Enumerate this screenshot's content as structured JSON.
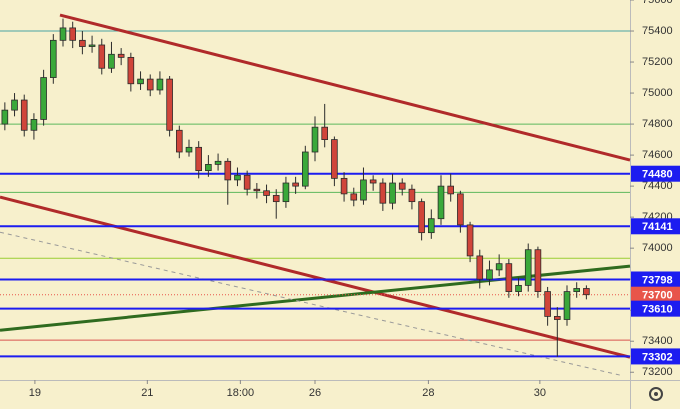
{
  "chart_data": {
    "type": "candlestick",
    "xlim": [
      -0.5,
      64.5
    ],
    "xticks": [
      {
        "value": 3.1,
        "label": "19"
      },
      {
        "value": 14.7,
        "label": "21"
      },
      {
        "value": 24.3,
        "label": "18:00"
      },
      {
        "value": 32,
        "label": "26"
      },
      {
        "value": 43.7,
        "label": "28"
      },
      {
        "value": 55.2,
        "label": "30"
      }
    ],
    "ylim": [
      73150,
      75600
    ],
    "yticks": [
      75600,
      75400,
      75200,
      75000,
      74800,
      74600,
      74400,
      74200,
      74000,
      73800,
      73600,
      73400,
      73200
    ],
    "grid": false,
    "up_color": "#3aa83a",
    "down_color": "#d0453a",
    "open": [
      74800,
      74890,
      74955,
      74760,
      74830,
      75100,
      75340,
      75420,
      75340,
      75300,
      75310,
      75160,
      75250,
      75230,
      75060,
      75090,
      75020,
      75090,
      74760,
      74620,
      74650,
      74500,
      74540,
      74560,
      74440,
      74470,
      74380,
      74370,
      74340,
      74300,
      74420,
      74400,
      74620,
      74780,
      74700,
      74450,
      74350,
      74310,
      74440,
      74420,
      74290,
      74420,
      74380,
      74300,
      74100,
      74190,
      74400,
      74350,
      74150,
      73950,
      73800,
      73860,
      73900,
      73720,
      73760,
      73990,
      73720,
      73560,
      73540,
      73720,
      73740
    ],
    "high": [
      74940,
      75000,
      74990,
      74870,
      75150,
      75380,
      75480,
      75460,
      75400,
      75370,
      75350,
      75330,
      75290,
      75260,
      75140,
      75120,
      75140,
      75110,
      74790,
      74700,
      74690,
      74600,
      74610,
      74580,
      74520,
      74500,
      74420,
      74410,
      74380,
      74460,
      74460,
      74660,
      74850,
      74930,
      74720,
      74490,
      74390,
      74520,
      74470,
      74450,
      74480,
      74450,
      74410,
      74320,
      74250,
      74470,
      74480,
      74370,
      74170,
      73990,
      73920,
      73960,
      73930,
      73810,
      74030,
      74010,
      73750,
      73620,
      73760,
      73780,
      73760
    ],
    "low": [
      74760,
      74850,
      74720,
      74700,
      74790,
      75060,
      75300,
      75290,
      75250,
      75260,
      75120,
      75130,
      75180,
      75010,
      75020,
      74980,
      74990,
      74720,
      74580,
      74590,
      74450,
      74460,
      74500,
      74280,
      74400,
      74340,
      74320,
      74290,
      74190,
      74260,
      74350,
      74380,
      74560,
      74650,
      74400,
      74300,
      74270,
      74280,
      74370,
      74240,
      74250,
      74340,
      74250,
      74050,
      74060,
      74150,
      74300,
      74100,
      73910,
      73740,
      73760,
      73820,
      73680,
      73690,
      73720,
      73680,
      73500,
      73300,
      73500,
      73680,
      73670
    ],
    "close": [
      74890,
      74955,
      74760,
      74830,
      75100,
      75340,
      75420,
      75340,
      75300,
      75310,
      75160,
      75250,
      75230,
      75060,
      75090,
      75020,
      75090,
      74760,
      74620,
      74650,
      74500,
      74540,
      74560,
      74440,
      74470,
      74380,
      74370,
      74340,
      74300,
      74420,
      74400,
      74620,
      74780,
      74700,
      74450,
      74350,
      74310,
      74440,
      74420,
      74290,
      74420,
      74380,
      74300,
      74100,
      74190,
      74400,
      74350,
      74150,
      73950,
      73800,
      73860,
      73900,
      73720,
      73760,
      73990,
      73720,
      73560,
      73540,
      73720,
      73740,
      73700
    ],
    "levels": [
      {
        "value": 75400,
        "color": "#4aa3a3"
      },
      {
        "value": 74800,
        "color": "#5cb85c"
      },
      {
        "value": 74360,
        "color": "#5cb85c"
      },
      {
        "value": 73935,
        "color": "#9acd32"
      },
      {
        "value": 73407,
        "color": "#d9534f"
      }
    ],
    "price_lines": [
      {
        "value": 74480,
        "color": "#1c1cf0"
      },
      {
        "value": 74141,
        "color": "#1c1cf0"
      },
      {
        "value": 73798,
        "color": "#1c1cf0"
      },
      {
        "value": 73700,
        "color": "#e8554a"
      },
      {
        "value": 73610,
        "color": "#1c1cf0"
      },
      {
        "value": 73302,
        "color": "#1c1cf0"
      }
    ],
    "trendlines": [
      {
        "color": "#b02a2a",
        "width": 3,
        "points": [
          [
            5.69,
            75503
          ],
          [
            64.5,
            74568
          ]
        ]
      },
      {
        "color": "#b02a2a",
        "width": 3,
        "points": [
          [
            -0.5,
            74329
          ],
          [
            64.5,
            73297
          ]
        ]
      },
      {
        "color": "#2f6b1f",
        "width": 3,
        "points": [
          [
            -0.5,
            73471
          ],
          [
            64.5,
            73884
          ]
        ]
      },
      {
        "color": "#999999",
        "width": 1,
        "dashed": true,
        "points": [
          [
            -0.5,
            74103
          ],
          [
            63.5,
            73181
          ]
        ]
      }
    ]
  }
}
